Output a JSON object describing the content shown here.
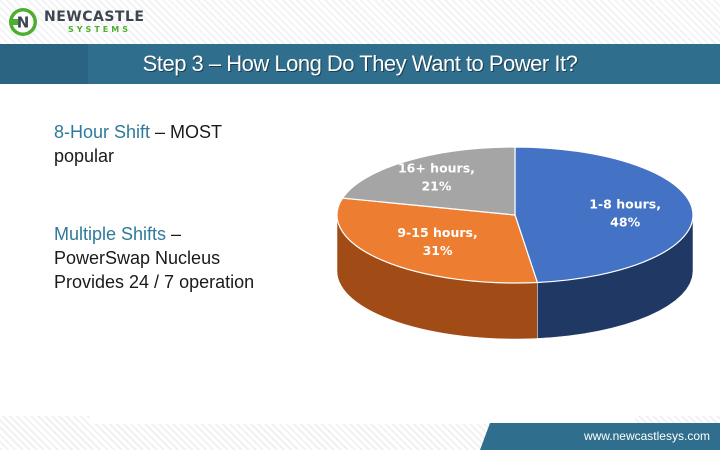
{
  "header": {
    "logo_name": "NEWCASTLE",
    "logo_sub": "SYSTEMS",
    "logo_letter": "N",
    "title": "Step 3 – How Long Do They Want to Power It?"
  },
  "body": {
    "block1_highlight": "8-Hour Shift",
    "block1_rest_line1": " – MOST",
    "block1_line2": "popular",
    "block2_highlight": "Multiple Shifts",
    "block2_rest_line1": " –",
    "block2_line2": "PowerSwap Nucleus",
    "block2_line3": "Provides 24 / 7 operation"
  },
  "footer": {
    "url": "www.newcastlesys.com"
  },
  "colors": {
    "brand_teal": "#2f6e8c",
    "highlight_text": "#2e7a9a",
    "slice_blue": "#4472c4",
    "slice_orange": "#ed7d31",
    "slice_gray": "#a5a5a5",
    "logo_green": "#4caf2f"
  },
  "chart_data": {
    "type": "pie",
    "style": "3d",
    "categories": [
      "1-8 hours",
      "9-15 hours",
      "16+ hours"
    ],
    "values": [
      48,
      31,
      21
    ],
    "unit": "%",
    "labels": [
      {
        "line1": "1-8 hours,",
        "line2": "48%"
      },
      {
        "line1": "9-15 hours,",
        "line2": "31%"
      },
      {
        "line1": "16+ hours,",
        "line2": "21%"
      }
    ],
    "colors": [
      "#4472c4",
      "#ed7d31",
      "#a5a5a5"
    ],
    "side_colors": [
      "#203864",
      "#a14b16",
      "#6e6e6e"
    ],
    "title": "",
    "legend": "none"
  }
}
